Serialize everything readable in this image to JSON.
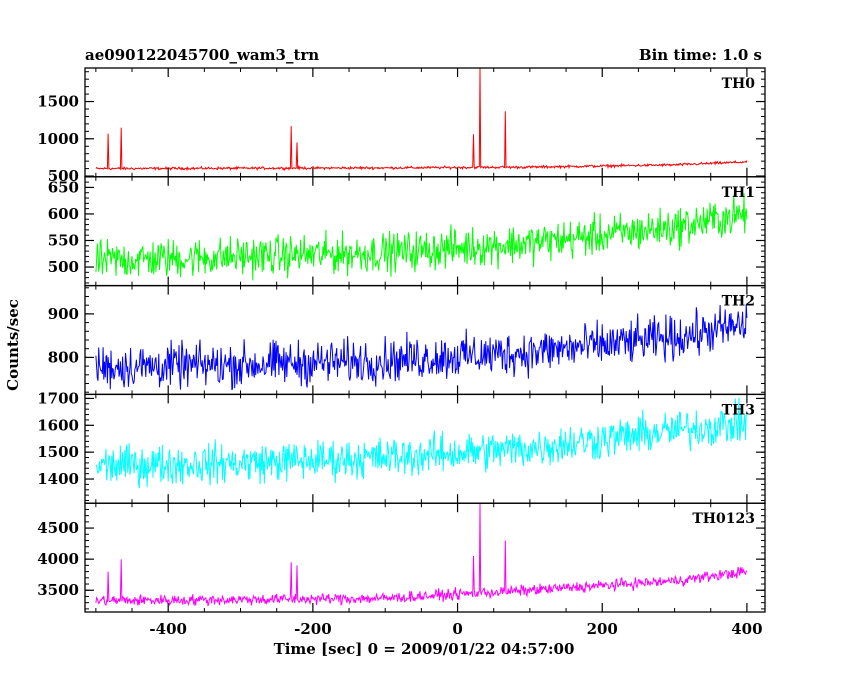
{
  "header": {
    "title": "ae090122045700_wam3_trn",
    "bin_time": "Bin time: 1.0 s"
  },
  "xlabel": "Time [sec] 0 = 2009/01/22 04:57:00",
  "ylabel": "Counts/sec",
  "chart_data": {
    "type": "line",
    "title": "ae090122045700_wam3_trn",
    "xlabel": "Time [sec] 0 = 2009/01/22 04:57:00",
    "ylabel": "Counts/sec",
    "xlim": [
      -515,
      425
    ],
    "x_ticks": [
      -400,
      -200,
      0,
      200,
      400
    ],
    "x_start": -500,
    "x_end": 400,
    "bin_time_s": 1.0,
    "grid": false,
    "panels": [
      {
        "name": "TH0",
        "color": "#ff0000",
        "ylim": [
          490,
          1950
        ],
        "yticks": [
          500,
          1000,
          1500
        ],
        "base": {
          "x": [
            -500,
            -300,
            -100,
            100,
            300,
            400
          ],
          "y": [
            600,
            605,
            610,
            620,
            650,
            690
          ]
        },
        "noise": 25,
        "spikes": [
          {
            "x": -483,
            "y": 1070
          },
          {
            "x": -465,
            "y": 1150
          },
          {
            "x": -230,
            "y": 1170
          },
          {
            "x": -222,
            "y": 950
          },
          {
            "x": 22,
            "y": 1060
          },
          {
            "x": 31,
            "y": 1950
          },
          {
            "x": 66,
            "y": 1370
          }
        ]
      },
      {
        "name": "TH1",
        "color": "#00ff00",
        "ylim": [
          465,
          670
        ],
        "yticks": [
          500,
          550,
          600,
          650
        ],
        "base": {
          "x": [
            -500,
            -300,
            -100,
            100,
            300,
            400
          ],
          "y": [
            512,
            520,
            527,
            545,
            575,
            600
          ]
        },
        "noise": 55,
        "spikes": []
      },
      {
        "name": "TH2",
        "color": "#0000ff",
        "ylim": [
          715,
          965
        ],
        "yticks": [
          800,
          900
        ],
        "base": {
          "x": [
            -500,
            -300,
            -100,
            100,
            300,
            400
          ],
          "y": [
            778,
            783,
            793,
            812,
            845,
            875
          ]
        },
        "noise": 75,
        "spikes": []
      },
      {
        "name": "TH3",
        "color": "#00ffff",
        "ylim": [
          1310,
          1715
        ],
        "yticks": [
          1400,
          1500,
          1600,
          1700
        ],
        "base": {
          "x": [
            -500,
            -300,
            -100,
            100,
            300,
            400
          ],
          "y": [
            1450,
            1460,
            1480,
            1515,
            1580,
            1610
          ]
        },
        "noise": 110,
        "spikes": []
      },
      {
        "name": "TH0123",
        "color": "#ff00ff",
        "ylim": [
          3150,
          4900
        ],
        "yticks": [
          3500,
          4000,
          4500
        ],
        "base": {
          "x": [
            -500,
            -300,
            -100,
            100,
            300,
            400
          ],
          "y": [
            3330,
            3350,
            3370,
            3500,
            3650,
            3800
          ]
        },
        "noise": 130,
        "spikes": [
          {
            "x": -483,
            "y": 3800
          },
          {
            "x": -465,
            "y": 4000
          },
          {
            "x": -230,
            "y": 3950
          },
          {
            "x": -222,
            "y": 3900
          },
          {
            "x": 22,
            "y": 4050
          },
          {
            "x": 31,
            "y": 4900
          },
          {
            "x": 66,
            "y": 4300
          }
        ]
      }
    ]
  }
}
